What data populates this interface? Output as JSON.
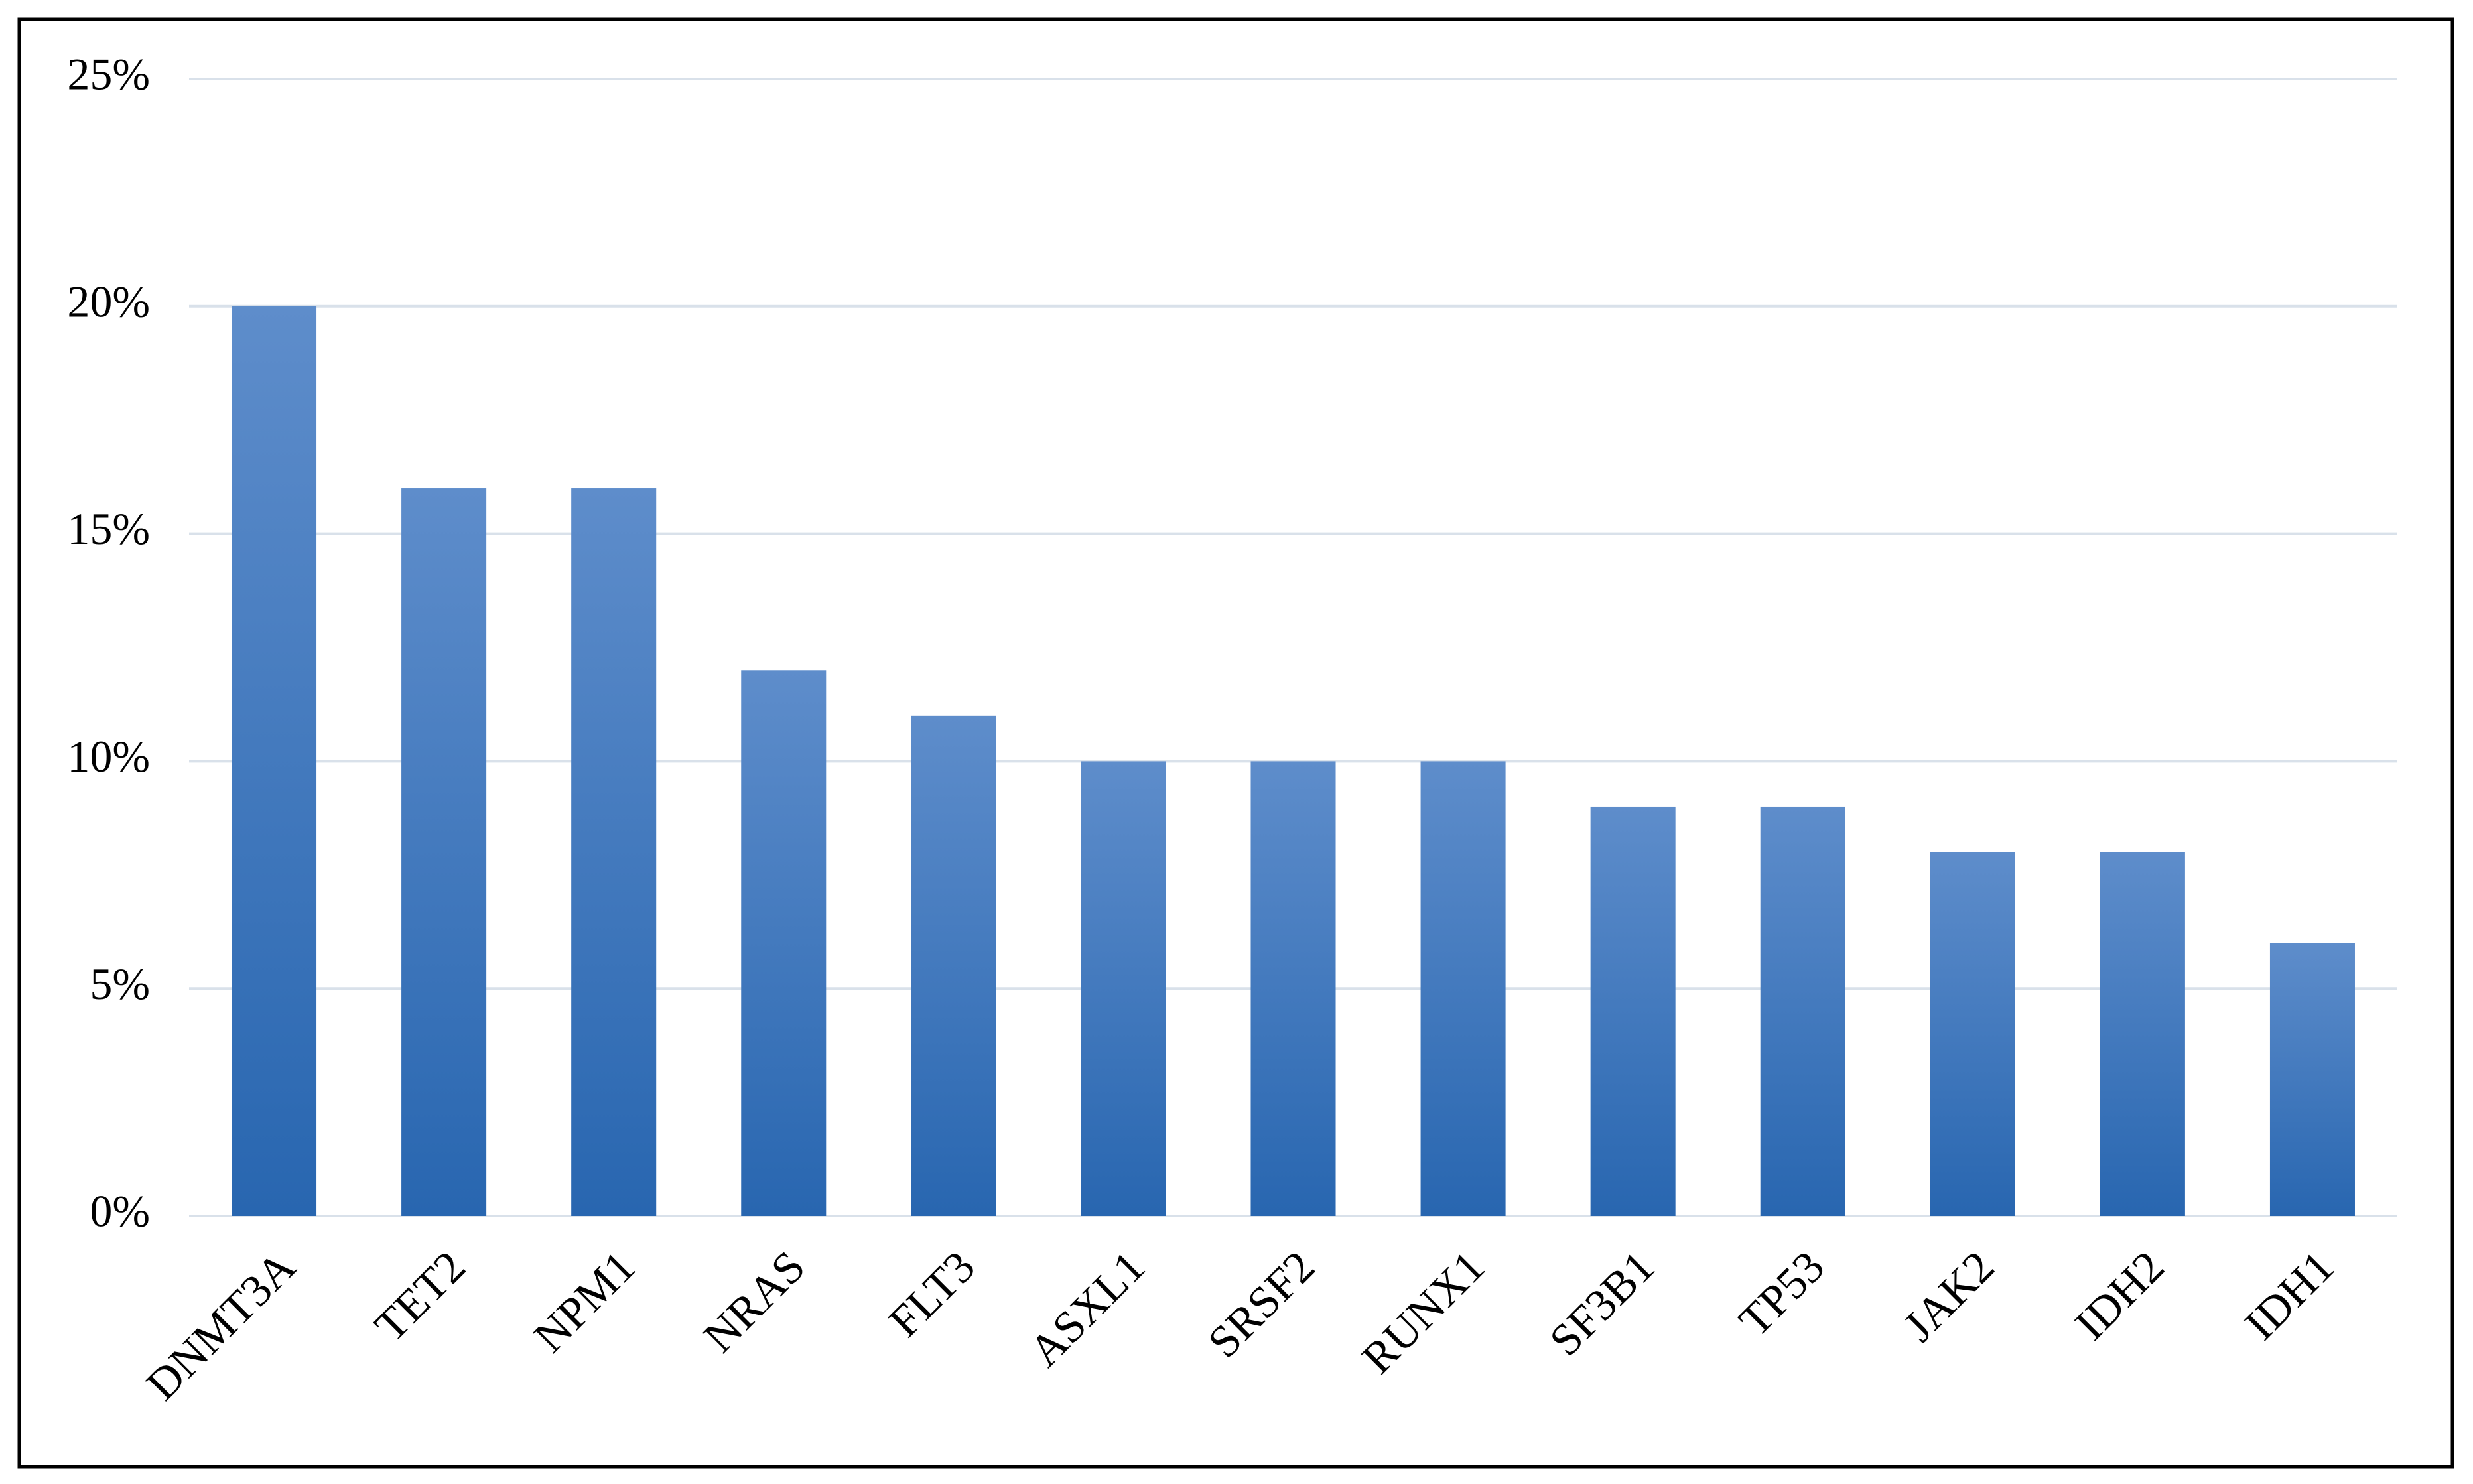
{
  "chart_data": {
    "type": "bar",
    "categories": [
      "DNMT3A",
      "TET2",
      "NPM1",
      "NRAS",
      "FLT3",
      "ASXL1",
      "SRSF2",
      "RUNX1",
      "SF3B1",
      "TP53",
      "JAK2",
      "IDH2",
      "IDH1"
    ],
    "values": [
      20,
      16,
      16,
      12,
      11,
      10,
      10,
      10,
      9,
      9,
      8,
      8,
      6
    ],
    "color": "#3b74bd",
    "ylim": [
      0,
      25
    ],
    "yticks": [
      {
        "value": 0,
        "label": "0%"
      },
      {
        "value": 5,
        "label": "5%"
      },
      {
        "value": 10,
        "label": "10%"
      },
      {
        "value": 15,
        "label": "15%"
      },
      {
        "value": 20,
        "label": "20%"
      },
      {
        "value": 25,
        "label": "25%"
      }
    ],
    "grid": true
  }
}
